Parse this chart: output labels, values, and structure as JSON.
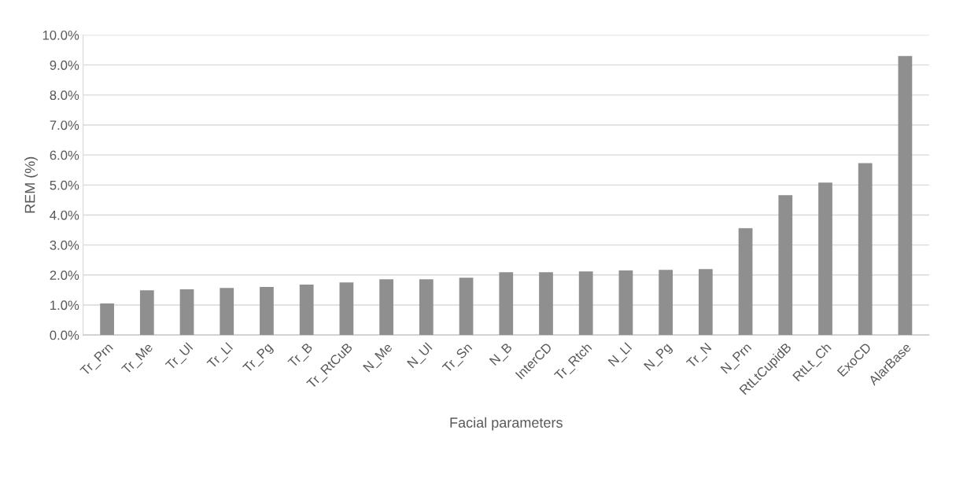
{
  "chart_data": {
    "type": "bar",
    "xlabel": "Facial parameters",
    "ylabel": "REM (%)",
    "categories": [
      "Tr_Prn",
      "Tr_Me",
      "Tr_Ul",
      "Tr_Ll",
      "Tr_Pg",
      "Tr_B",
      "Tr_RtCuB",
      "N_Me",
      "N_Ul",
      "Tr_Sn",
      "N_B",
      "InterCD",
      "Tr_Rtch",
      "N_Ll",
      "N_Pg",
      "Tr_N",
      "N_Prn",
      "RtLtCupidB",
      "RtLt_Ch",
      "ExoCD",
      "AlarBase"
    ],
    "values": [
      1.05,
      1.49,
      1.52,
      1.57,
      1.6,
      1.68,
      1.75,
      1.86,
      1.86,
      1.91,
      2.09,
      2.09,
      2.12,
      2.15,
      2.17,
      2.2,
      3.56,
      4.66,
      5.08,
      5.73,
      9.3
    ],
    "color": "#8f8f8f",
    "ylim": [
      0,
      10
    ],
    "yticks": [
      {
        "value": 0,
        "label": "0.0%"
      },
      {
        "value": 1,
        "label": "1.0%"
      },
      {
        "value": 2,
        "label": "2.0%"
      },
      {
        "value": 3,
        "label": "3.0%"
      },
      {
        "value": 4,
        "label": "4.0%"
      },
      {
        "value": 5,
        "label": "5.0%"
      },
      {
        "value": 6,
        "label": "6.0%"
      },
      {
        "value": 7,
        "label": "7.0%"
      },
      {
        "value": 8,
        "label": "8.0%"
      },
      {
        "value": 9,
        "label": "9.0%"
      },
      {
        "value": 10,
        "label": "10.0%"
      }
    ],
    "grid": "y",
    "legend": false
  }
}
